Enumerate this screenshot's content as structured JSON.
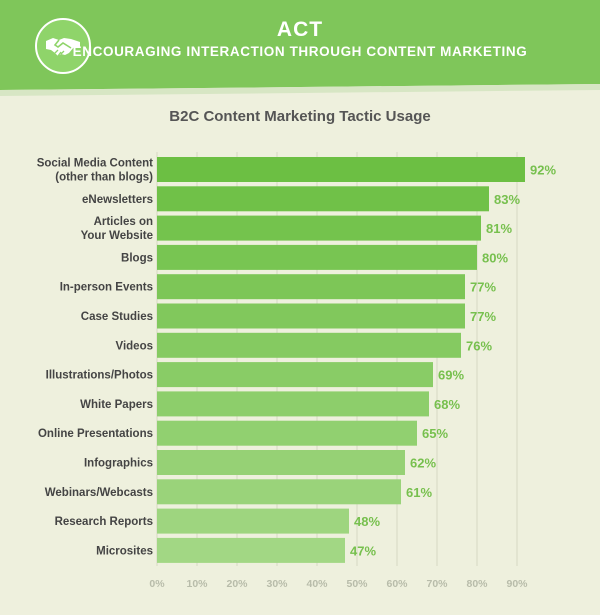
{
  "header": {
    "title": "ACT",
    "subtitle": "ENCOURAGING INTERACTION THROUGH CONTENT MARKETING",
    "icon": "handshake-icon",
    "accent": "#7fc65a"
  },
  "chart_data": {
    "type": "bar",
    "orientation": "horizontal",
    "title": "B2C Content Marketing Tactic Usage",
    "xlabel": "",
    "ylabel": "",
    "xlim": [
      0,
      90
    ],
    "ticks": [
      "0%",
      "10%",
      "20%",
      "30%",
      "40%",
      "50%",
      "60%",
      "70%",
      "80%",
      "90%"
    ],
    "grid": true,
    "categories": [
      [
        "Social Media Content",
        "(other than blogs)"
      ],
      [
        "eNewsletters"
      ],
      [
        "Articles on",
        "Your Website"
      ],
      [
        "Blogs"
      ],
      [
        "In-person Events"
      ],
      [
        "Case Studies"
      ],
      [
        "Videos"
      ],
      [
        "Illustrations/Photos"
      ],
      [
        "White Papers"
      ],
      [
        "Online Presentations"
      ],
      [
        "Infographics"
      ],
      [
        "Webinars/Webcasts"
      ],
      [
        "Research Reports"
      ],
      [
        "Microsites"
      ]
    ],
    "values": [
      92,
      83,
      81,
      80,
      77,
      77,
      76,
      69,
      68,
      65,
      62,
      61,
      48,
      47
    ],
    "labels": [
      "92%",
      "83%",
      "81%",
      "80%",
      "77%",
      "77%",
      "76%",
      "69%",
      "68%",
      "65%",
      "62%",
      "61%",
      "48%",
      "47%"
    ],
    "colors": {
      "bar_dark": "#6cbf43",
      "bar_light": "#a2d784",
      "value_label": "#77c04e",
      "category_label": "#444444",
      "tick": "#b8bcaa"
    }
  }
}
